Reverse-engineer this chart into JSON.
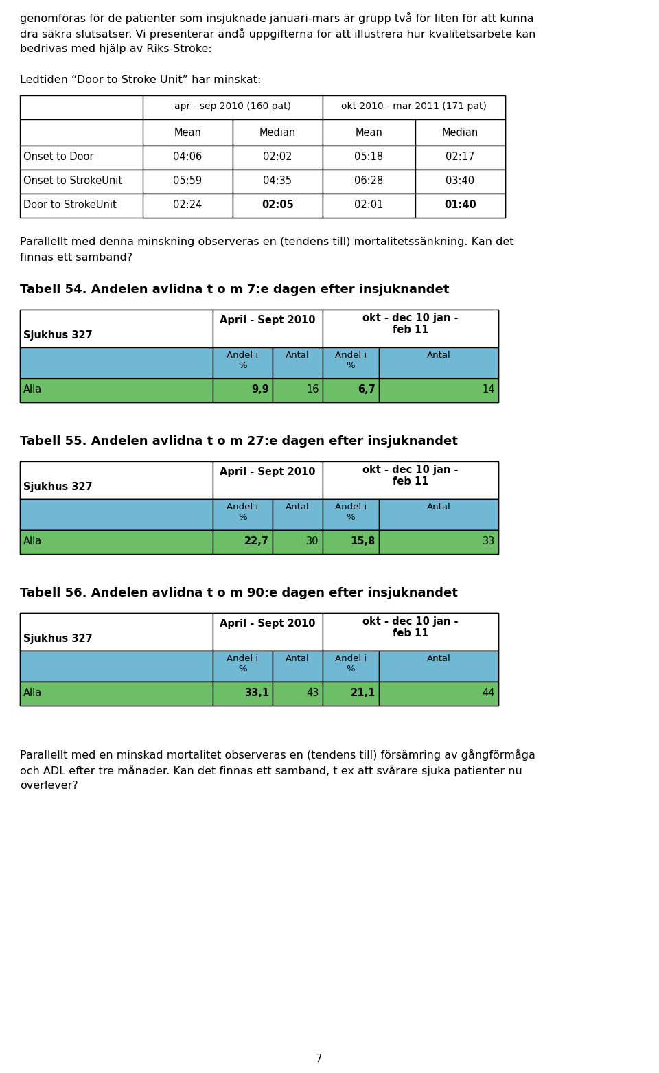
{
  "page_bg": "#ffffff",
  "intro_text": "genomföras för de patienter som insjuknade januari-mars är grupp två för liten för att kunna\ndra säkra slutsatser. Vi presenterar ändå uppgifterna för att illustrera hur kvalitetsarbete kan\nbedrivas med hjälp av Riks-Stroke:",
  "ledtiden_text": "Ledtiden “Door to Stroke Unit” har minskat:",
  "table1_header1": "apr - sep 2010 (160 pat)",
  "table1_header2": "okt 2010 - mar 2011 (171 pat)",
  "table1_subheaders": [
    "Mean",
    "Median",
    "Mean",
    "Median"
  ],
  "table1_rows": [
    [
      "Onset to Door",
      "04:06",
      "02:02",
      "05:18",
      "02:17"
    ],
    [
      "Onset to StrokeUnit",
      "05:59",
      "04:35",
      "06:28",
      "03:40"
    ],
    [
      "Door to StrokeUnit",
      "02:24",
      "02:05",
      "02:01",
      "01:40"
    ]
  ],
  "parallel_text": "Parallellt med denna minskning observeras en (tendens till) mortalitetssänkning. Kan det\nfinnas ett samband?",
  "tabell54_title": "Tabell 54. Andelen avlidna t o m 7:e dagen efter insjuknandet",
  "tabell55_title": "Tabell 55. Andelen avlidna t o m 27:e dagen efter insjuknandet",
  "tabell56_title": "Tabell 56. Andelen avlidna t o m 90:e dagen efter insjuknandet",
  "tabell_sjukhus": "Sjukhus 327",
  "tabell_col1": "April - Sept 2010",
  "tabell_col2": "okt - dec 10 jan -\nfeb 11",
  "tabell_subheaders": [
    "Andel i\n%",
    "Antal",
    "Andel i\n%",
    "Antal"
  ],
  "tabell54_alla": [
    "9,9",
    "16",
    "6,7",
    "14"
  ],
  "tabell55_alla": [
    "22,7",
    "30",
    "15,8",
    "33"
  ],
  "tabell56_alla": [
    "33,1",
    "43",
    "21,1",
    "44"
  ],
  "footer_text": "Parallellt med en minskad mortalitet observeras en (tendens till) försämring av gångförmåga\noch ADL efter tre månader. Kan det finnas ett samband, t ex att svårare sjuka patienter nu\növerlever?",
  "page_number": "7",
  "subheader_color": "#70b8d4",
  "data_row_color": "#6dbf67"
}
